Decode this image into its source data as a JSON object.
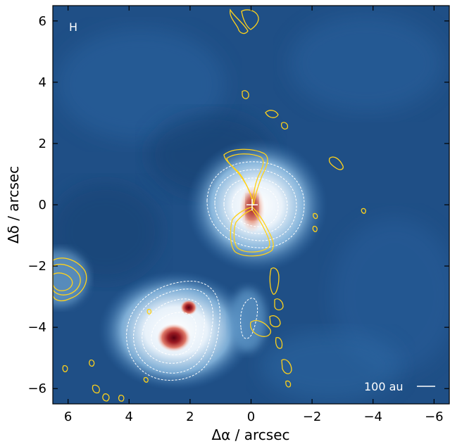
{
  "chart_data": {
    "type": "heatmap",
    "panel_label": "H",
    "xlabel": "Δα / arcsec",
    "ylabel": "Δδ / arcsec",
    "xlim": [
      6.5,
      -6.5
    ],
    "ylim": [
      -6.5,
      6.5
    ],
    "x_ticks": [
      6,
      4,
      2,
      0,
      -2,
      -4,
      -6
    ],
    "y_ticks": [
      6,
      4,
      2,
      0,
      -2,
      -4,
      -6
    ],
    "x_tick_labels": [
      "6",
      "4",
      "2",
      "0",
      "−2",
      "−4",
      "−6"
    ],
    "y_tick_labels": [
      "6",
      "4",
      "2",
      "0",
      "−2",
      "−4",
      "−6"
    ],
    "scale_bar_label": "100 au",
    "colormap": {
      "background": "#1f4f86",
      "mid": "#6fa6d2",
      "bright": "#ffffff",
      "peak": "#7a0015"
    },
    "contour_colors": {
      "dust": "#ffffff",
      "line_emission": "#ffd21a"
    },
    "sources": [
      {
        "name": "",
        "x": 0.0,
        "y": 0.0,
        "marker": "cross"
      },
      {
        "name": "",
        "x": 2.6,
        "y": -4.4,
        "marker": "peak"
      },
      {
        "name": "",
        "x": 2.0,
        "y": -3.4,
        "marker": "peak"
      }
    ]
  }
}
